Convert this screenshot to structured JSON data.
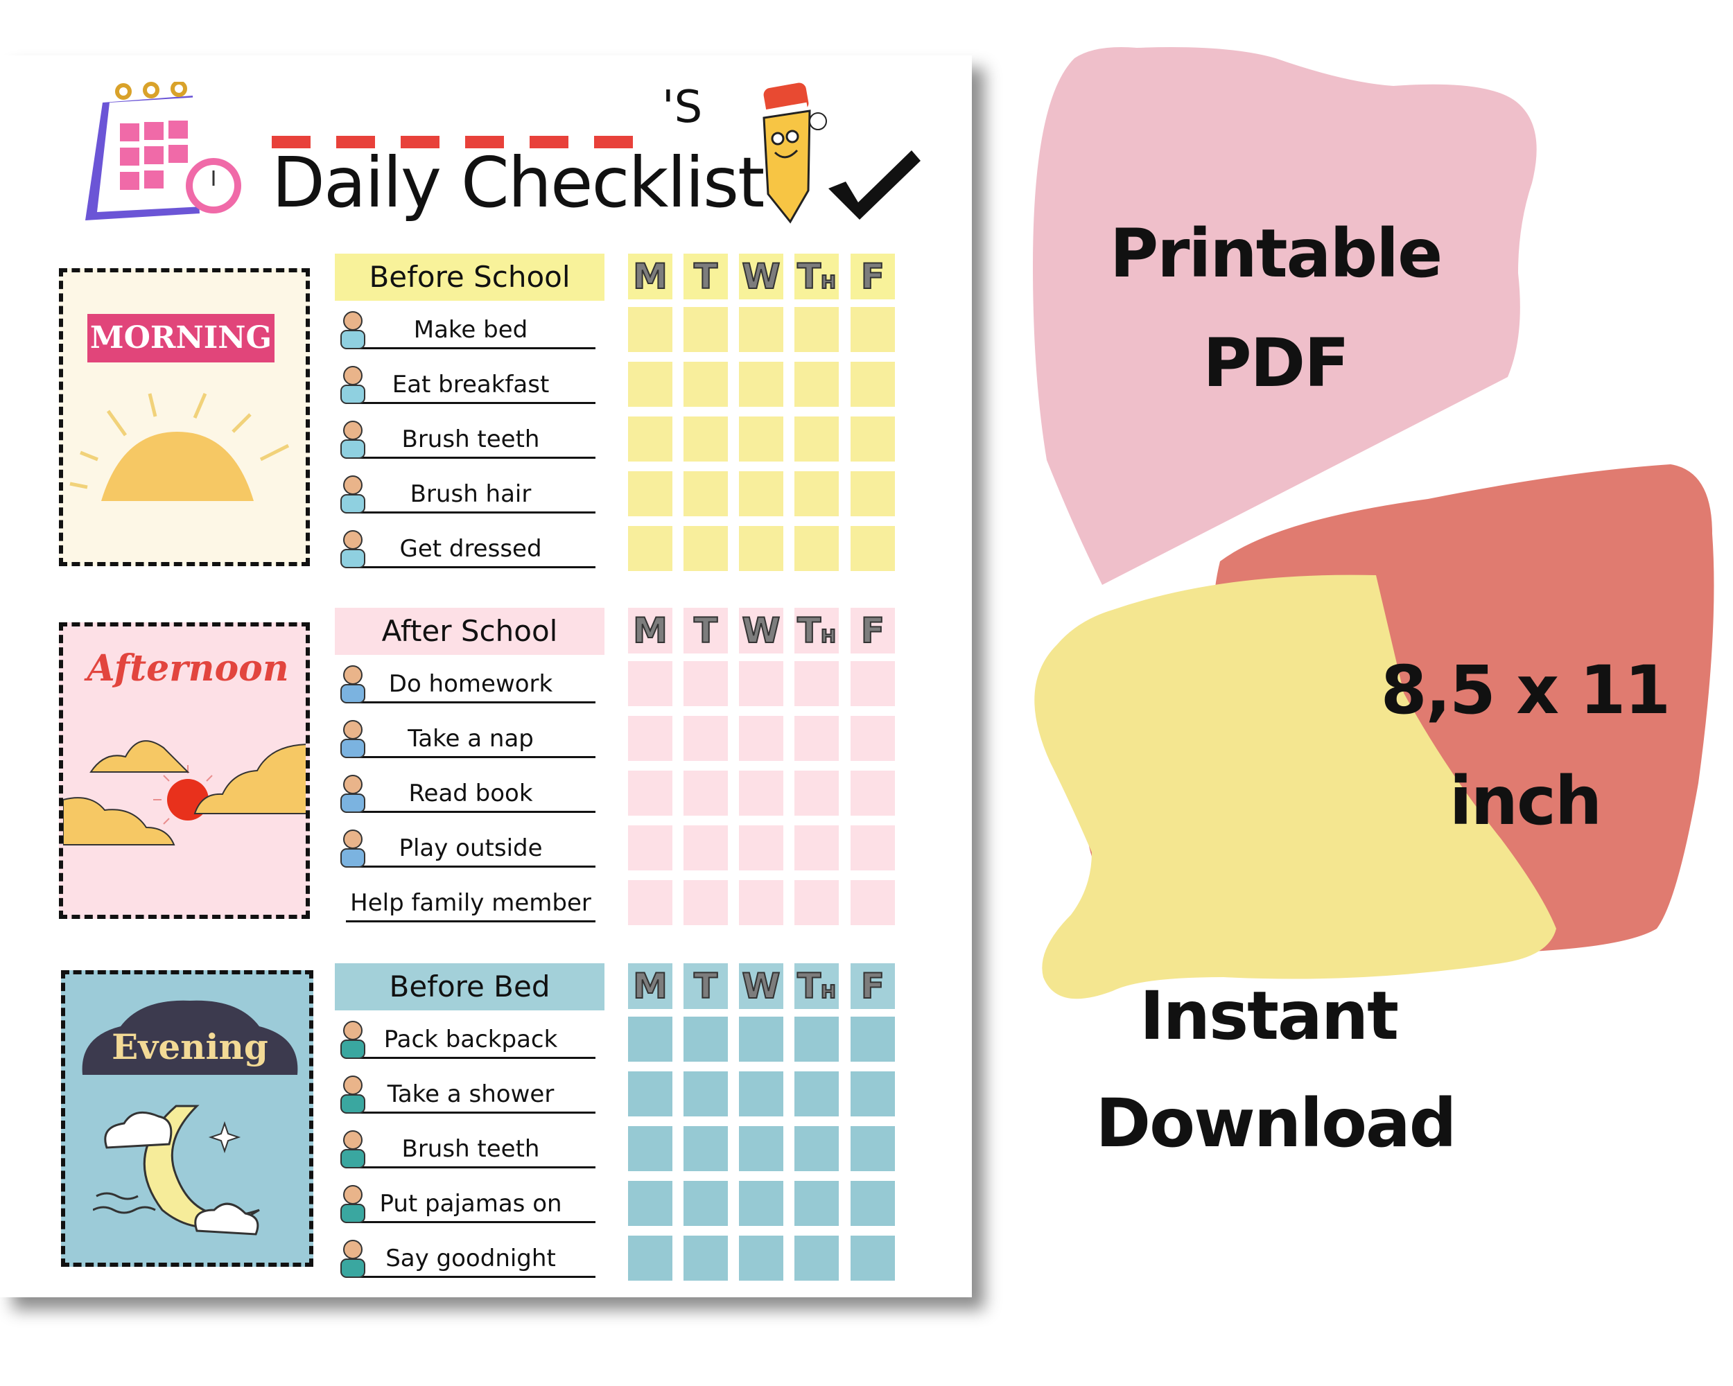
{
  "header": {
    "title": "Daily Checklist",
    "name_suffix": "'S",
    "calendar_icon": "calendar-clock-icon",
    "mascot_icon": "pencil-mascot-icon",
    "check_icon": "checkmark-icon"
  },
  "days": [
    "M",
    "T",
    "W",
    "Th",
    "F"
  ],
  "sections": [
    {
      "card_label": "MORNING",
      "title": "Before School",
      "header_color": "#f8f29a",
      "cell_color": "#f8ee9c",
      "card_color": "#fdf7e6",
      "tasks": [
        {
          "label": "Make bed",
          "icon": "making-bed-icon"
        },
        {
          "label": "Eat breakfast",
          "icon": "breakfast-icon"
        },
        {
          "label": "Brush teeth",
          "icon": "toothbrush-icon"
        },
        {
          "label": "Brush hair",
          "icon": "brush-hair-icon"
        },
        {
          "label": "Get dressed",
          "icon": "dressed-kid-icon"
        }
      ]
    },
    {
      "card_label": "Afternoon",
      "title": "After School",
      "header_color": "#fde0e6",
      "cell_color": "#fde0e6",
      "card_color": "#fde0e6",
      "tasks": [
        {
          "label": "Do homework",
          "icon": "homework-icon"
        },
        {
          "label": "Take a nap",
          "icon": "nap-icon"
        },
        {
          "label": "Read book",
          "icon": "reading-icon"
        },
        {
          "label": "Play outside",
          "icon": "slide-icon"
        },
        {
          "label": "Help family member",
          "icon": ""
        }
      ]
    },
    {
      "card_label": "Evening",
      "title": "Before Bed",
      "header_color": "#a3d0d9",
      "cell_color": "#96c9d3",
      "card_color": "#9ccbd8",
      "tasks": [
        {
          "label": "Pack backpack",
          "icon": "backpack-icon"
        },
        {
          "label": "Take a shower",
          "icon": "shower-icon"
        },
        {
          "label": "Brush teeth",
          "icon": "brushing-teeth-icon"
        },
        {
          "label": "Put pajamas on",
          "icon": "pajamas-icon"
        },
        {
          "label": "Say goodnight",
          "icon": "sleepy-star-icon"
        }
      ]
    }
  ],
  "promo": {
    "badge1": {
      "line1": "Printable",
      "line2": "PDF",
      "color": "#efbfca"
    },
    "badge2": {
      "line1": "8,5 x 11",
      "line2": "inch",
      "color": "#e07b70"
    },
    "badge3": {
      "line1": "Instant",
      "line2": "Download",
      "color": "#f4e690"
    }
  }
}
